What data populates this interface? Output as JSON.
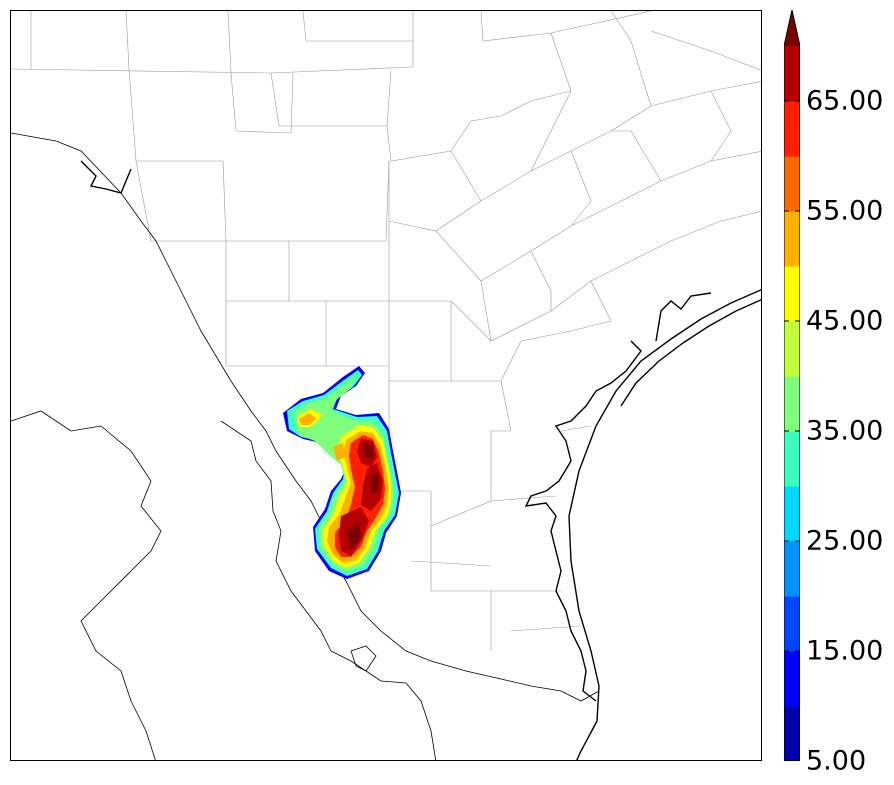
{
  "colorbar": {
    "levels": [
      5,
      10,
      15,
      20,
      25,
      30,
      35,
      40,
      45,
      50,
      55,
      60,
      65,
      70
    ],
    "colors": [
      "#0000a8",
      "#0000ff",
      "#0048ff",
      "#0090ff",
      "#00d8ff",
      "#3cffc0",
      "#80ff7c",
      "#c0ff3c",
      "#ffff00",
      "#ffb000",
      "#ff6800",
      "#ff2000",
      "#b40000"
    ],
    "extend_color": "#7a0000",
    "extend": "max",
    "tick_labels": [
      "5.00",
      "15.00",
      "25.00",
      "35.00",
      "45.00",
      "55.00",
      "65.00"
    ]
  },
  "map": {
    "background": "#ffffff",
    "coast_color": "#000000",
    "county_color": "#9a9a9a",
    "border_color": "#000000"
  }
}
